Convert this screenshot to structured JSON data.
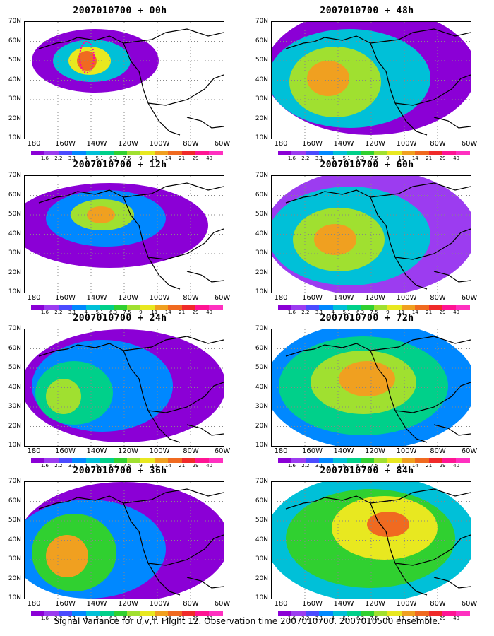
{
  "figure": {
    "caption": "Signal Variance for u,v,T. Flight 12. Observation time 2007010700. 2007010500 ensemble.",
    "lat_labels": [
      "70N",
      "60N",
      "50N",
      "40N",
      "30N",
      "20N",
      "10N"
    ],
    "lon_labels": [
      "180",
      "160W",
      "140W",
      "120W",
      "100W",
      "80W",
      "60W"
    ],
    "colorbar": {
      "labels": [
        "1.6",
        "2.2",
        "3.1",
        "4",
        "5.1",
        "6.3",
        "7.5",
        "9",
        "11",
        "14",
        "21",
        "29",
        "40"
      ],
      "colors": [
        "#8b00d6",
        "#9c3cf0",
        "#4b4bff",
        "#0088ff",
        "#00c0d8",
        "#00d08a",
        "#30d030",
        "#a0e030",
        "#e8e820",
        "#f0a020",
        "#f06a20",
        "#f02a2a",
        "#ff1493",
        "#ff30c0"
      ]
    },
    "panels": [
      {
        "title": "2007010700 + 00h"
      },
      {
        "title": "2007010700 + 12h"
      },
      {
        "title": "2007010700 + 24h"
      },
      {
        "title": "2007010700 + 36h"
      },
      {
        "title": "2007010700 + 48h"
      },
      {
        "title": "2007010700 + 60h"
      },
      {
        "title": "2007010700 + 72h"
      },
      {
        "title": "2007010700 + 84h"
      }
    ]
  }
}
